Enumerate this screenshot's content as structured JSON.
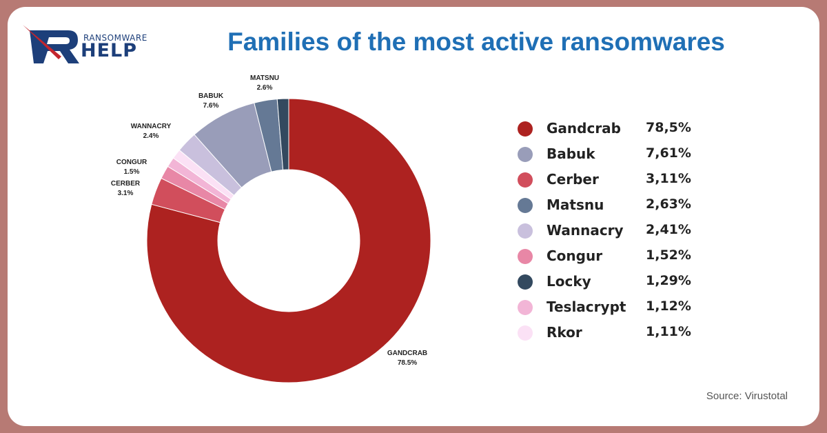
{
  "brand": {
    "small": "RANSOMWARE",
    "big": "HELP"
  },
  "chart_data": {
    "type": "pie",
    "title": "Families of the most active ransomwares",
    "donut": true,
    "slices": [
      {
        "label": "GANDCRAB",
        "value": 78.5,
        "pct_label": "78.5%",
        "color": "#ad2220"
      },
      {
        "label": "CERBER",
        "value": 3.1,
        "pct_label": "3.1%",
        "color": "#d14e5c"
      },
      {
        "label": "CONGUR",
        "value": 1.5,
        "pct_label": "1.5%",
        "color": "#e887a6"
      },
      {
        "label": "",
        "value": 1.12,
        "pct_label": "",
        "color": "#f2b5d6"
      },
      {
        "label": "",
        "value": 1.11,
        "pct_label": "",
        "color": "#fbe1f5"
      },
      {
        "label": "WANNACRY",
        "value": 2.4,
        "pct_label": "2.4%",
        "color": "#c9c0dd"
      },
      {
        "label": "BABUK",
        "value": 7.6,
        "pct_label": "7.6%",
        "color": "#999db9"
      },
      {
        "label": "MATSNU",
        "value": 2.6,
        "pct_label": "2.6%",
        "color": "#657995"
      },
      {
        "label": "",
        "value": 1.29,
        "pct_label": "",
        "color": "#33495f"
      }
    ],
    "legend": [
      {
        "name": "Gandcrab",
        "value": "78,5%",
        "color": "#ad2220"
      },
      {
        "name": "Babuk",
        "value": "7,61%",
        "color": "#999db9"
      },
      {
        "name": "Cerber",
        "value": "3,11%",
        "color": "#d14e5c"
      },
      {
        "name": "Matsnu",
        "value": "2,63%",
        "color": "#657995"
      },
      {
        "name": "Wannacry",
        "value": "2,41%",
        "color": "#c9c0dd"
      },
      {
        "name": "Congur",
        "value": "1,52%",
        "color": "#e887a6"
      },
      {
        "name": "Locky",
        "value": "1,29%",
        "color": "#33495f"
      },
      {
        "name": "Teslacrypt",
        "value": "1,12%",
        "color": "#f2b5d6"
      },
      {
        "name": "Rkor",
        "value": "1,11%",
        "color": "#fbe1f5"
      }
    ],
    "legend_placement": "right",
    "source": "Source: Virustotal"
  }
}
